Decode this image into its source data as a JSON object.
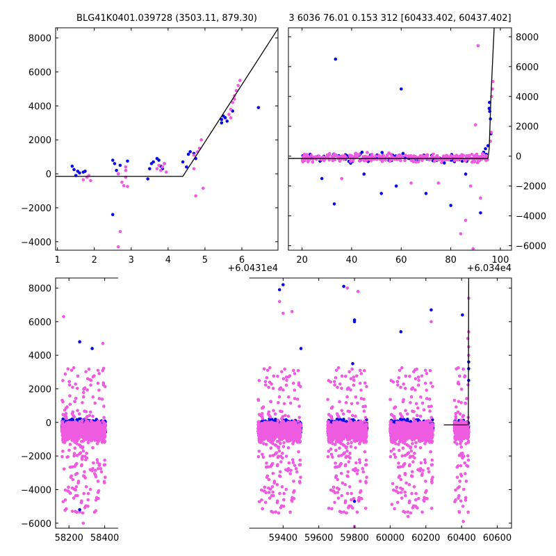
{
  "chart_data": [
    {
      "type": "scatter",
      "title": "BLG41K0401.039728 (3503.11, 879.30)",
      "x_offset_label": "+6.0431e4",
      "xlim": [
        0.95,
        6.98
      ],
      "ylim": [
        -4500,
        8600
      ],
      "x_ticks": [
        1,
        2,
        3,
        4,
        5,
        6
      ],
      "x_tick_labels": [
        "1",
        "2",
        "3",
        "4",
        "5",
        "6"
      ],
      "y_ticks": [
        -4000,
        -2000,
        0,
        2000,
        4000,
        6000,
        8000
      ],
      "y_tick_labels": [
        "−4000",
        "−2000",
        "0",
        "2000",
        "4000",
        "6000",
        "8000"
      ],
      "colors": {
        "blue": "#0a0ae6",
        "pink": "#ee5be0"
      },
      "series": [
        {
          "color": "blue",
          "points": [
            [
              1.4,
              450
            ],
            [
              1.45,
              250
            ],
            [
              1.55,
              150
            ],
            [
              1.6,
              50
            ],
            [
              1.7,
              100
            ],
            [
              1.75,
              150
            ],
            [
              1.5,
              -100
            ],
            [
              2.5,
              800
            ],
            [
              2.55,
              600
            ],
            [
              2.6,
              200
            ],
            [
              2.65,
              0
            ],
            [
              2.7,
              500
            ],
            [
              2.5,
              -2400
            ],
            [
              2.9,
              750
            ],
            [
              3.45,
              -300
            ],
            [
              3.5,
              300
            ],
            [
              3.55,
              600
            ],
            [
              3.6,
              700
            ],
            [
              3.7,
              900
            ],
            [
              3.75,
              800
            ],
            [
              3.8,
              450
            ],
            [
              3.85,
              300
            ],
            [
              3.9,
              600
            ],
            [
              4.4,
              700
            ],
            [
              4.5,
              400
            ],
            [
              4.55,
              1150
            ],
            [
              4.6,
              1300
            ],
            [
              4.7,
              1200
            ],
            [
              4.75,
              900
            ],
            [
              5.45,
              3200
            ],
            [
              5.5,
              3400
            ],
            [
              5.55,
              3300
            ],
            [
              5.6,
              3100
            ],
            [
              5.45,
              3000
            ],
            [
              6.45,
              3900
            ],
            [
              5.75,
              3700
            ]
          ]
        },
        {
          "color": "pink",
          "points": [
            [
              1.7,
              -350
            ],
            [
              1.8,
              -200
            ],
            [
              1.9,
              -400
            ],
            [
              1.85,
              -100
            ],
            [
              2.65,
              0
            ],
            [
              2.75,
              -500
            ],
            [
              2.85,
              -200
            ],
            [
              2.8,
              -700
            ],
            [
              2.7,
              -3400
            ],
            [
              2.65,
              -4300
            ],
            [
              2.85,
              200
            ],
            [
              2.9,
              -750
            ],
            [
              2.85,
              400
            ],
            [
              3.7,
              300
            ],
            [
              3.75,
              500
            ],
            [
              3.8,
              200
            ],
            [
              3.85,
              400
            ],
            [
              3.9,
              600
            ],
            [
              3.95,
              100
            ],
            [
              4.7,
              1100
            ],
            [
              4.8,
              1300
            ],
            [
              4.85,
              1500
            ],
            [
              4.9,
              2000
            ],
            [
              4.75,
              -1300
            ],
            [
              4.95,
              -850
            ],
            [
              4.7,
              300
            ],
            [
              5.65,
              3500
            ],
            [
              5.7,
              3800
            ],
            [
              5.75,
              4200
            ],
            [
              5.8,
              4600
            ],
            [
              5.85,
              4900
            ],
            [
              5.9,
              5200
            ],
            [
              5.95,
              5500
            ],
            [
              5.8,
              4400
            ],
            [
              5.7,
              3300
            ]
          ]
        }
      ],
      "model_line": [
        [
          0.95,
          -150
        ],
        [
          4.4,
          -150
        ],
        [
          6.98,
          8550
        ]
      ]
    },
    {
      "type": "scatter",
      "title": "3 6036 76.01 0.153 312 [60433.402, 60437.402]",
      "x_offset_label": "+6.034e4",
      "xlim": [
        14.5,
        104.5
      ],
      "ylim": [
        -6300,
        8600
      ],
      "y_axis_side": "right",
      "x_ticks": [
        20,
        40,
        60,
        80,
        100
      ],
      "x_tick_labels": [
        "20",
        "40",
        "60",
        "80",
        "100"
      ],
      "y_ticks": [
        -6000,
        -4000,
        -2000,
        0,
        2000,
        4000,
        6000,
        8000
      ],
      "y_tick_labels": [
        "−6000",
        "−4000",
        "−2000",
        "0",
        "2000",
        "4000",
        "6000",
        "8000"
      ],
      "band": {
        "x_from": 20,
        "x_to": 95,
        "y_center": -100,
        "spread": 250,
        "count_blue": 90,
        "count_pink": 320
      },
      "series": [
        {
          "color": "blue",
          "points": [
            [
              33.5,
              6500
            ],
            [
              60.0,
              4500
            ],
            [
              33.0,
              -3200
            ],
            [
              52.0,
              -2500
            ],
            [
              58.0,
              -2000
            ],
            [
              70.0,
              -2500
            ],
            [
              80.0,
              -3300
            ],
            [
              92.0,
              -3800
            ],
            [
              28.0,
              -1500
            ],
            [
              45.0,
              -1200
            ],
            [
              95.5,
              3200
            ],
            [
              95.6,
              3600
            ],
            [
              95.7,
              3000
            ],
            [
              96.0,
              2500
            ],
            [
              96.2,
              1500
            ],
            [
              95.0,
              700
            ],
            [
              94.0,
              500
            ],
            [
              86.0,
              -1200
            ]
          ]
        },
        {
          "color": "pink",
          "points": [
            [
              91.0,
              7400
            ],
            [
              90.0,
              2100
            ],
            [
              88.0,
              -2000
            ],
            [
              84.0,
              -5200
            ],
            [
              89.0,
              -6200
            ],
            [
              86.0,
              -4300
            ],
            [
              92.0,
              -2800
            ],
            [
              75.0,
              -1800
            ],
            [
              96.5,
              4000
            ],
            [
              96.8,
              4500
            ],
            [
              97.0,
              5000
            ],
            [
              96.3,
              1600
            ],
            [
              96.0,
              1000
            ],
            [
              36.0,
              -1500
            ],
            [
              64.0,
              -1800
            ]
          ]
        }
      ],
      "model_line": [
        [
          14.5,
          -150
        ],
        [
          95.0,
          -150
        ],
        [
          95.5,
          500
        ],
        [
          96.2,
          4000
        ],
        [
          97.5,
          8600
        ]
      ]
    },
    {
      "type": "scatter",
      "x_break": [
        58475,
        59210
      ],
      "xlim": [
        58125,
        60680
      ],
      "ylim": [
        -6300,
        8600
      ],
      "x_ticks": [
        58200,
        58400,
        59400,
        59600,
        59800,
        60000,
        60200,
        60400,
        60600
      ],
      "x_tick_labels": [
        "58200",
        "58400",
        "59400",
        "59600",
        "59800",
        "60000",
        "60200",
        "60400",
        "60600"
      ],
      "y_ticks": [
        -6000,
        -4000,
        -2000,
        0,
        2000,
        4000,
        6000,
        8000
      ],
      "y_tick_labels": [
        "−6000",
        "−4000",
        "−2000",
        "0",
        "2000",
        "4000",
        "6000",
        "8000"
      ],
      "seasons": [
        [
          58160,
          58405
        ],
        [
          59260,
          59500
        ],
        [
          59650,
          59870
        ],
        [
          60000,
          60240
        ],
        [
          60360,
          60440
        ]
      ],
      "series": [
        {
          "color": "blue",
          "points": [
            [
              58260,
              4800
            ],
            [
              58330,
              4400
            ],
            [
              59400,
              8200
            ],
            [
              59380,
              7900
            ],
            [
              59500,
              4400
            ],
            [
              59740,
              8100
            ],
            [
              59800,
              6100
            ],
            [
              59800,
              6000
            ],
            [
              60060,
              5400
            ],
            [
              60230,
              6700
            ],
            [
              60405,
              6400
            ],
            [
              60440,
              3200
            ],
            [
              60440,
              3600
            ],
            [
              60440,
              2500
            ],
            [
              59790,
              3500
            ],
            [
              58260,
              -5200
            ],
            [
              59800,
              -4700
            ]
          ]
        },
        {
          "color": "pink",
          "points": [
            [
              58170,
              6300
            ],
            [
              58390,
              4700
            ],
            [
              59380,
              7200
            ],
            [
              59400,
              6500
            ],
            [
              59450,
              6600
            ],
            [
              59760,
              8000
            ],
            [
              59820,
              7800
            ],
            [
              60230,
              6000
            ],
            [
              60440,
              7400
            ],
            [
              60435,
              5000
            ],
            [
              60440,
              5400
            ],
            [
              60440,
              4500
            ],
            [
              60440,
              4000
            ],
            [
              58280,
              -6000
            ],
            [
              59800,
              -6200
            ],
            [
              60100,
              -5600
            ],
            [
              60410,
              -5900
            ]
          ]
        }
      ],
      "model_line": [
        [
          60300,
          -150
        ],
        [
          60438,
          -150
        ],
        [
          60440,
          8600
        ]
      ]
    }
  ]
}
